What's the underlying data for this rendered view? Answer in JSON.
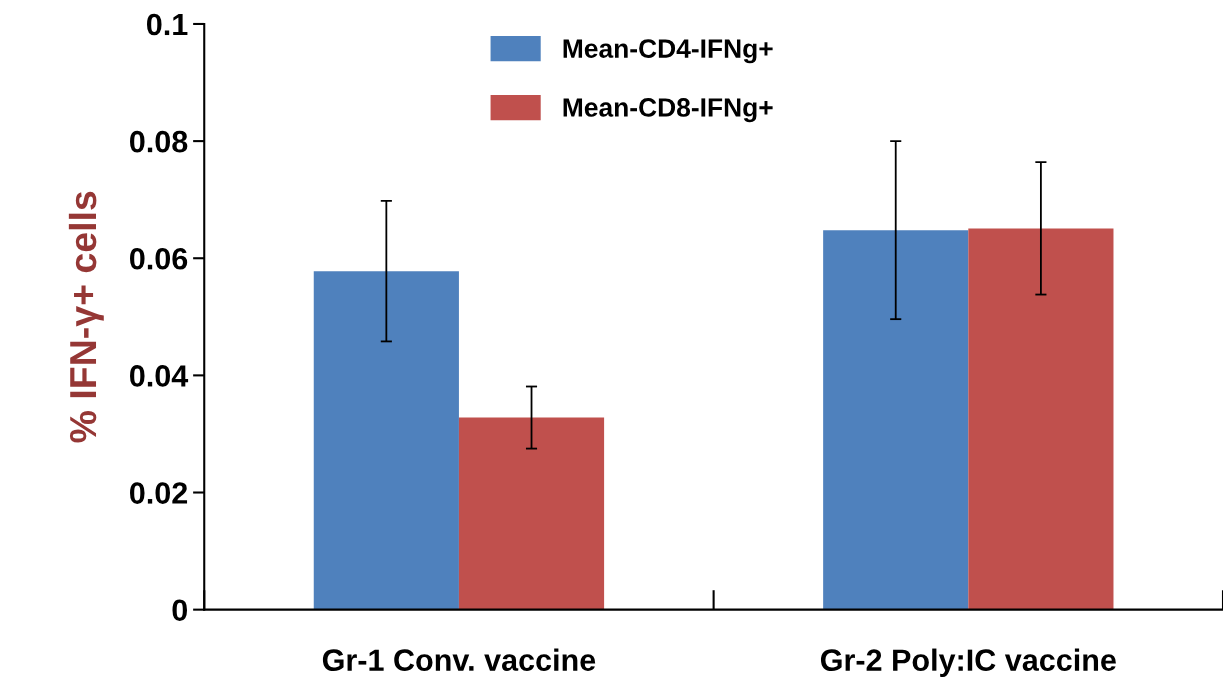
{
  "chart_data": {
    "type": "bar",
    "ylabel": "% IFN-γ+ cells",
    "categories": [
      "Gr-1 Conv. vaccine",
      "Gr-2 Poly:IC vaccine"
    ],
    "series": [
      {
        "name": "Mean-CD4-IFNg+",
        "color": "#4f81bd",
        "values": [
          0.0578,
          0.0648
        ],
        "errors": [
          0.012,
          0.0152
        ]
      },
      {
        "name": "Mean-CD8-IFNg+",
        "color": "#c0504d",
        "values": [
          0.0328,
          0.0651
        ],
        "errors": [
          0.0053,
          0.0113
        ]
      }
    ],
    "ylim": [
      0,
      0.1
    ],
    "yticks": [
      0,
      0.02,
      0.04,
      0.06,
      0.08,
      0.1
    ],
    "grid": false,
    "legend": "top"
  }
}
